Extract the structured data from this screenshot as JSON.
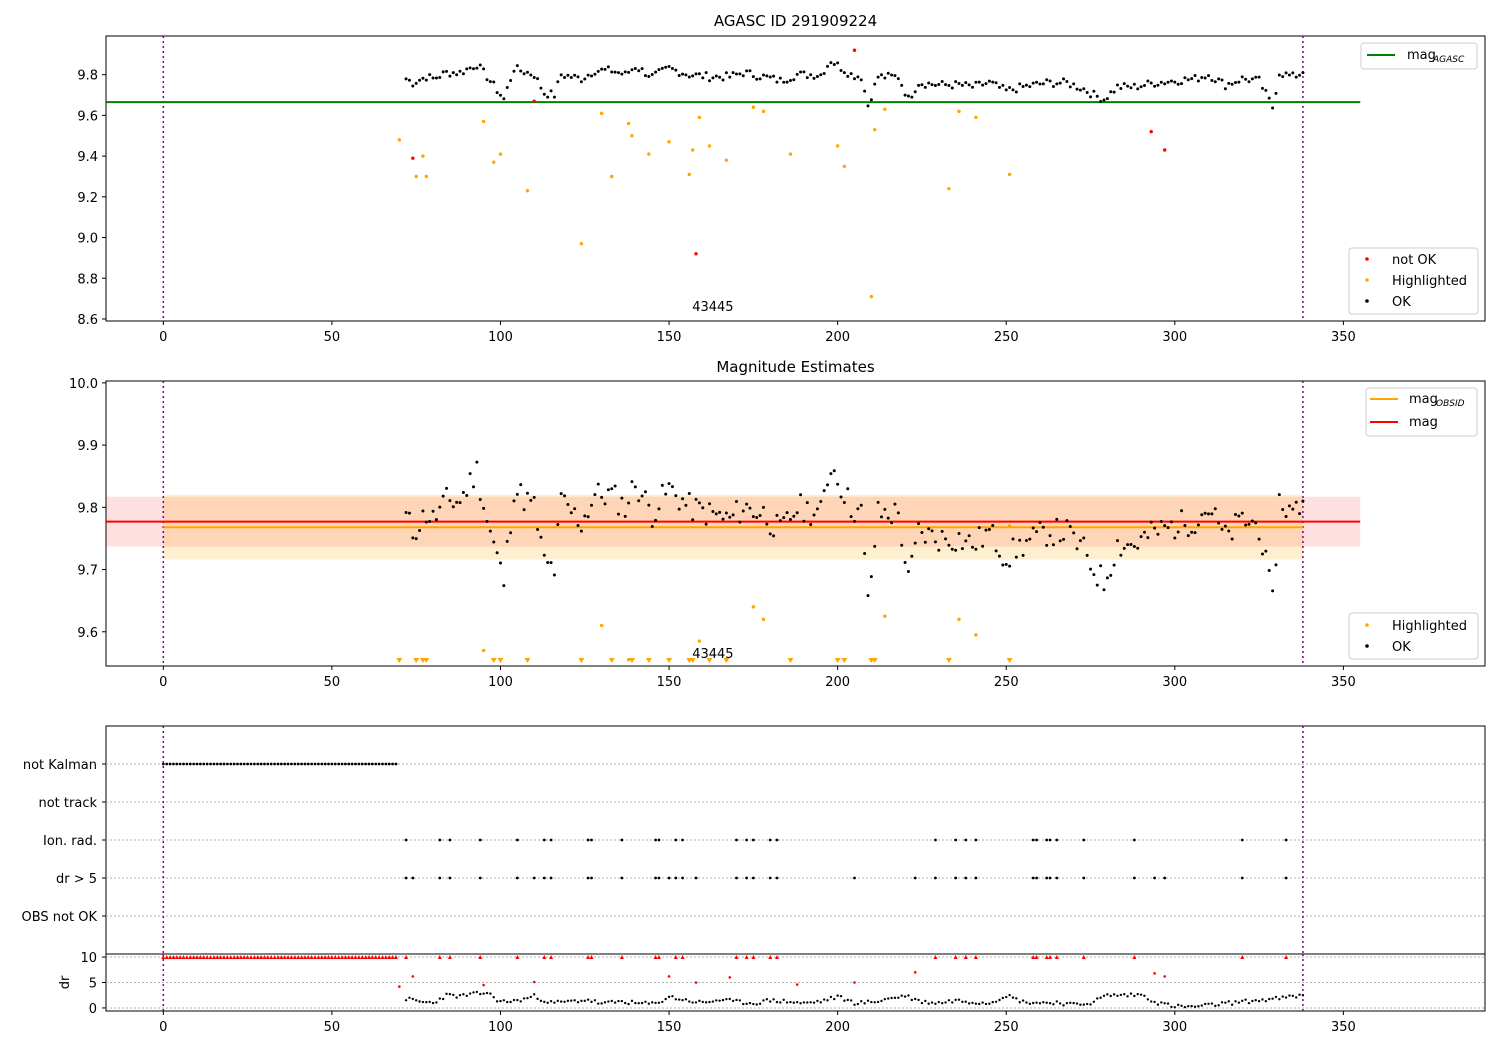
{
  "chart_data": [
    {
      "type": "scatter",
      "title": "AGASC ID 291909224",
      "annotation": "43445",
      "xlim": [
        -17,
        392
      ],
      "ylim": [
        8.59,
        9.99
      ],
      "xticks": [
        0,
        50,
        100,
        150,
        200,
        250,
        300,
        350
      ],
      "yticks": [
        8.6,
        8.8,
        9.0,
        9.2,
        9.4,
        9.6,
        9.8
      ],
      "grid": false,
      "vlines": [
        0,
        338
      ],
      "hlines": [
        {
          "label": "mag_AGASC",
          "y": 9.665,
          "color": "#008000",
          "x_from": -17,
          "x_to": 355
        }
      ],
      "legend_lines": [
        {
          "label": "mag",
          "subscript": "AGASC",
          "color": "#008000"
        }
      ],
      "legend_points": [
        {
          "label": "not OK",
          "color": "#ff0000"
        },
        {
          "label": "Highlighted",
          "color": "#ffa500"
        },
        {
          "label": "OK",
          "color": "#000000"
        }
      ],
      "legend_placement": [
        "top-right",
        "bottom-right"
      ],
      "highlighted_points": [
        [
          70,
          9.48
        ],
        [
          75,
          9.3
        ],
        [
          77,
          9.4
        ],
        [
          78,
          9.3
        ],
        [
          95,
          9.57
        ],
        [
          98,
          9.37
        ],
        [
          100,
          9.41
        ],
        [
          108,
          9.23
        ],
        [
          124,
          8.97
        ],
        [
          130,
          9.61
        ],
        [
          133,
          9.3
        ],
        [
          138,
          9.56
        ],
        [
          139,
          9.5
        ],
        [
          144,
          9.41
        ],
        [
          150,
          9.47
        ],
        [
          156,
          9.31
        ],
        [
          157,
          9.43
        ],
        [
          159,
          9.59
        ],
        [
          162,
          9.45
        ],
        [
          167,
          9.38
        ],
        [
          175,
          9.64
        ],
        [
          178,
          9.62
        ],
        [
          186,
          9.41
        ],
        [
          200,
          9.45
        ],
        [
          202,
          9.35
        ],
        [
          210,
          8.71
        ],
        [
          211,
          9.53
        ],
        [
          214,
          9.63
        ],
        [
          233,
          9.24
        ],
        [
          236,
          9.62
        ],
        [
          241,
          9.59
        ],
        [
          251,
          9.31
        ]
      ],
      "not_ok_points": [
        [
          74,
          9.39
        ],
        [
          110,
          9.67
        ],
        [
          158,
          8.92
        ],
        [
          205,
          9.92
        ],
        [
          293,
          9.52
        ],
        [
          297,
          9.43
        ]
      ],
      "ok_band": [
        [
          72,
          9.78
        ],
        [
          74,
          9.76
        ],
        [
          78,
          9.79
        ],
        [
          80,
          9.78
        ],
        [
          84,
          9.81
        ],
        [
          88,
          9.81
        ],
        [
          93,
          9.85
        ],
        [
          96,
          9.79
        ],
        [
          101,
          9.68
        ],
        [
          104,
          9.83
        ],
        [
          110,
          9.8
        ],
        [
          113,
          9.71
        ],
        [
          116,
          9.7
        ],
        [
          118,
          9.8
        ],
        [
          124,
          9.78
        ],
        [
          128,
          9.82
        ],
        [
          133,
          9.82
        ],
        [
          137,
          9.8
        ],
        [
          140,
          9.84
        ],
        [
          145,
          9.79
        ],
        [
          150,
          9.83
        ],
        [
          156,
          9.8
        ],
        [
          162,
          9.79
        ],
        [
          168,
          9.79
        ],
        [
          172,
          9.81
        ],
        [
          178,
          9.79
        ],
        [
          183,
          9.77
        ],
        [
          188,
          9.8
        ],
        [
          195,
          9.8
        ],
        [
          198,
          9.87
        ],
        [
          204,
          9.8
        ],
        [
          207,
          9.79
        ],
        [
          209,
          9.65
        ],
        [
          212,
          9.79
        ],
        [
          218,
          9.79
        ],
        [
          221,
          9.68
        ],
        [
          224,
          9.76
        ],
        [
          230,
          9.75
        ],
        [
          236,
          9.75
        ],
        [
          240,
          9.74
        ],
        [
          245,
          9.76
        ],
        [
          250,
          9.72
        ],
        [
          255,
          9.74
        ],
        [
          262,
          9.76
        ],
        [
          268,
          9.76
        ],
        [
          273,
          9.73
        ],
        [
          276,
          9.7
        ],
        [
          279,
          9.68
        ],
        [
          283,
          9.74
        ],
        [
          288,
          9.74
        ],
        [
          294,
          9.76
        ],
        [
          300,
          9.77
        ],
        [
          306,
          9.78
        ],
        [
          310,
          9.8
        ],
        [
          315,
          9.75
        ],
        [
          320,
          9.78
        ],
        [
          325,
          9.77
        ],
        [
          329,
          9.64
        ],
        [
          331,
          9.81
        ],
        [
          335,
          9.79
        ],
        [
          338,
          9.81
        ]
      ]
    },
    {
      "type": "scatter",
      "title": "Magnitude Estimates",
      "annotation": "43445",
      "xlim": [
        -17,
        392
      ],
      "ylim": [
        9.545,
        10.003
      ],
      "xticks": [
        0,
        50,
        100,
        150,
        200,
        250,
        300,
        350
      ],
      "yticks": [
        9.6,
        9.7,
        9.8,
        9.9,
        10.0
      ],
      "grid": false,
      "vlines": [
        0,
        338
      ],
      "hlines": [
        {
          "label": "mag_OBSID",
          "y": 9.768,
          "color": "#ffa500",
          "x_from": 0,
          "x_to": 338,
          "band": [
            9.716,
            9.82
          ]
        },
        {
          "label": "mag",
          "y": 9.777,
          "color": "#ff0000",
          "x_from": -17,
          "x_to": 355,
          "band": [
            9.737,
            9.817
          ]
        }
      ],
      "legend_lines": [
        {
          "label": "mag",
          "subscript": "OBSID",
          "color": "#ffa500"
        },
        {
          "label": "mag",
          "subscript": "",
          "color": "#ff0000"
        }
      ],
      "legend_points": [
        {
          "label": "Highlighted",
          "color": "#ffa500"
        },
        {
          "label": "OK",
          "color": "#000000"
        }
      ],
      "legend_placement": [
        "top-right",
        "bottom-right"
      ],
      "highlighted_points": [
        [
          95,
          9.57
        ],
        [
          130,
          9.61
        ],
        [
          138,
          9.555
        ],
        [
          159,
          9.585
        ],
        [
          175,
          9.64
        ],
        [
          178,
          9.62
        ],
        [
          214,
          9.625
        ],
        [
          236,
          9.62
        ],
        [
          241,
          9.595
        ],
        [
          251,
          9.77
        ]
      ],
      "clipped_highlighted_x": [
        70,
        75,
        77,
        78,
        98,
        100,
        108,
        124,
        133,
        139,
        144,
        150,
        156,
        157,
        162,
        167,
        186,
        200,
        202,
        210,
        211,
        233,
        251
      ],
      "ok_band": [
        [
          72,
          9.785
        ],
        [
          74,
          9.76
        ],
        [
          78,
          9.79
        ],
        [
          80,
          9.78
        ],
        [
          84,
          9.81
        ],
        [
          88,
          9.81
        ],
        [
          93,
          9.86
        ],
        [
          96,
          9.78
        ],
        [
          101,
          9.68
        ],
        [
          104,
          9.83
        ],
        [
          110,
          9.8
        ],
        [
          113,
          9.71
        ],
        [
          116,
          9.7
        ],
        [
          118,
          9.81
        ],
        [
          124,
          9.775
        ],
        [
          128,
          9.82
        ],
        [
          133,
          9.82
        ],
        [
          137,
          9.8
        ],
        [
          140,
          9.84
        ],
        [
          145,
          9.79
        ],
        [
          150,
          9.83
        ],
        [
          156,
          9.8
        ],
        [
          162,
          9.79
        ],
        [
          168,
          9.78
        ],
        [
          172,
          9.8
        ],
        [
          178,
          9.79
        ],
        [
          183,
          9.76
        ],
        [
          188,
          9.8
        ],
        [
          195,
          9.79
        ],
        [
          198,
          9.87
        ],
        [
          204,
          9.8
        ],
        [
          207,
          9.79
        ],
        [
          209,
          9.645
        ],
        [
          212,
          9.79
        ],
        [
          218,
          9.79
        ],
        [
          221,
          9.68
        ],
        [
          224,
          9.76
        ],
        [
          230,
          9.75
        ],
        [
          236,
          9.75
        ],
        [
          240,
          9.74
        ],
        [
          245,
          9.76
        ],
        [
          250,
          9.72
        ],
        [
          255,
          9.74
        ],
        [
          262,
          9.76
        ],
        [
          268,
          9.76
        ],
        [
          273,
          9.73
        ],
        [
          276,
          9.7
        ],
        [
          279,
          9.68
        ],
        [
          283,
          9.74
        ],
        [
          288,
          9.74
        ],
        [
          294,
          9.76
        ],
        [
          300,
          9.77
        ],
        [
          306,
          9.78
        ],
        [
          310,
          9.8
        ],
        [
          315,
          9.75
        ],
        [
          320,
          9.78
        ],
        [
          325,
          9.77
        ],
        [
          329,
          9.645
        ],
        [
          331,
          9.81
        ],
        [
          335,
          9.79
        ],
        [
          338,
          9.81
        ]
      ]
    },
    {
      "type": "scatter",
      "title": "",
      "xlim": [
        -17,
        392
      ],
      "xticks": [
        0,
        50,
        100,
        150,
        200,
        250,
        300,
        350
      ],
      "grid": true,
      "vlines": [
        0,
        338
      ],
      "flag_rows": [
        "not Kalman",
        "not track",
        "Ion. rad.",
        "dr > 5",
        "OBS not OK"
      ],
      "not_kalman_x_range": [
        0,
        69
      ],
      "ion_rad_x": [
        72,
        82,
        85,
        94,
        105,
        113,
        115,
        126,
        127,
        136,
        146,
        147,
        152,
        154,
        170,
        173,
        175,
        180,
        182,
        229,
        235,
        238,
        241,
        258,
        259,
        262,
        263,
        265,
        273,
        288,
        320,
        333
      ],
      "dr_gt5_x": [
        72,
        74,
        82,
        85,
        94,
        105,
        110,
        113,
        115,
        126,
        127,
        136,
        146,
        147,
        150,
        152,
        154,
        158,
        170,
        173,
        175,
        180,
        182,
        205,
        223,
        229,
        235,
        238,
        241,
        258,
        259,
        262,
        263,
        265,
        273,
        288,
        294,
        297,
        320,
        333
      ],
      "dr_subplot": {
        "ylabel": "dr",
        "ylim": [
          -0.6,
          10.6
        ],
        "yticks": [
          0,
          5,
          10
        ],
        "clipped_red_x": [
          72,
          82,
          85,
          94,
          105,
          113,
          115,
          126,
          127,
          136,
          146,
          147,
          152,
          154,
          170,
          173,
          175,
          180,
          182,
          229,
          235,
          238,
          241,
          258,
          259,
          262,
          263,
          265,
          273,
          288,
          320,
          333
        ],
        "red_points": [
          [
            70,
            4.2
          ],
          [
            74,
            6.2
          ],
          [
            95,
            4.5
          ],
          [
            110,
            5.1
          ],
          [
            150,
            6.2
          ],
          [
            158,
            5.0
          ],
          [
            168,
            6.0
          ],
          [
            188,
            4.6
          ],
          [
            205,
            5.0
          ],
          [
            223,
            7.0
          ],
          [
            294,
            6.8
          ],
          [
            297,
            6.2
          ]
        ],
        "black_band": [
          [
            72,
            1.8
          ],
          [
            76,
            1.2
          ],
          [
            80,
            1.0
          ],
          [
            84,
            2.5
          ],
          [
            88,
            2.3
          ],
          [
            92,
            2.7
          ],
          [
            96,
            3.0
          ],
          [
            100,
            1.2
          ],
          [
            105,
            1.4
          ],
          [
            110,
            2.3
          ],
          [
            115,
            1.0
          ],
          [
            120,
            1.2
          ],
          [
            126,
            1.6
          ],
          [
            130,
            0.8
          ],
          [
            136,
            1.3
          ],
          [
            140,
            0.9
          ],
          [
            146,
            0.8
          ],
          [
            150,
            2.2
          ],
          [
            155,
            1.5
          ],
          [
            160,
            1.0
          ],
          [
            165,
            1.6
          ],
          [
            170,
            1.2
          ],
          [
            175,
            0.9
          ],
          [
            180,
            1.5
          ],
          [
            186,
            1.2
          ],
          [
            190,
            0.9
          ],
          [
            195,
            1.3
          ],
          [
            200,
            2.2
          ],
          [
            205,
            1.0
          ],
          [
            210,
            1.1
          ],
          [
            215,
            1.8
          ],
          [
            220,
            2.4
          ],
          [
            225,
            1.2
          ],
          [
            230,
            1.0
          ],
          [
            235,
            1.5
          ],
          [
            240,
            1.2
          ],
          [
            245,
            1.0
          ],
          [
            250,
            2.5
          ],
          [
            255,
            1.2
          ],
          [
            260,
            1.0
          ],
          [
            265,
            1.1
          ],
          [
            270,
            0.6
          ],
          [
            275,
            1.0
          ],
          [
            280,
            2.5
          ],
          [
            285,
            2.5
          ],
          [
            290,
            2.6
          ],
          [
            295,
            1.0
          ],
          [
            300,
            0.3
          ],
          [
            305,
            0.2
          ],
          [
            310,
            0.5
          ],
          [
            315,
            0.9
          ],
          [
            320,
            1.2
          ],
          [
            325,
            1.5
          ],
          [
            330,
            1.8
          ],
          [
            335,
            2.2
          ],
          [
            338,
            2.5
          ]
        ]
      }
    }
  ]
}
